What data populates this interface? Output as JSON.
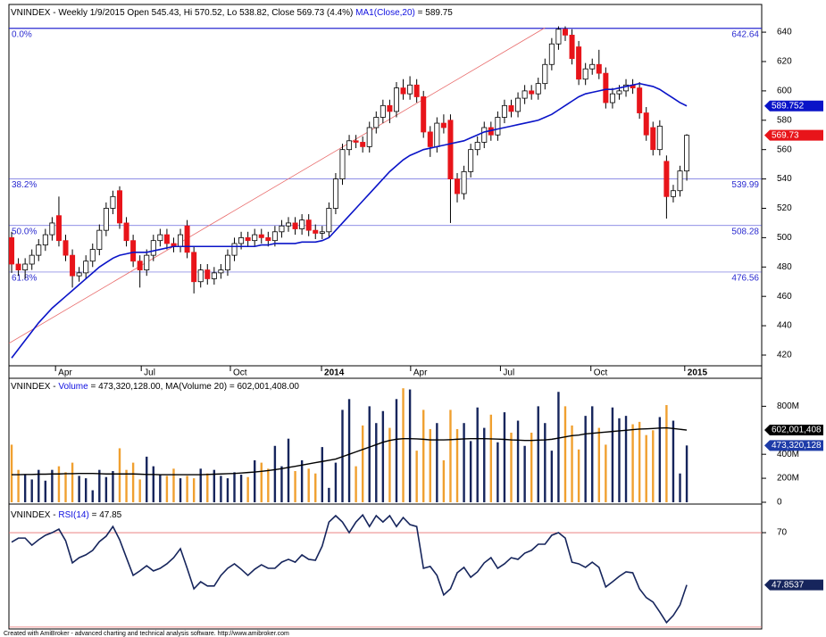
{
  "chart_data": [
    {
      "type": "candlestick",
      "header": [
        "VNINDEX - Weekly 1/9/2015 Open 545.43, Hi 570.52, Lo 538.82, Close 569.73 (4.4%) ",
        "MA1(Close,20)",
        " = 589.75"
      ],
      "xlim": [
        -0.4,
        111.1
      ],
      "xticks": [
        {
          "value": 6.5,
          "label": "Apr"
        },
        {
          "value": 19.2,
          "label": "Jul"
        },
        {
          "value": 32.4,
          "label": "Oct"
        },
        {
          "value": 45.9,
          "label": "2014"
        },
        {
          "value": 59.1,
          "label": "Apr"
        },
        {
          "value": 72.4,
          "label": "Jul"
        },
        {
          "value": 85.8,
          "label": "Oct"
        },
        {
          "value": 99.7,
          "label": "2015"
        }
      ],
      "ylim": [
        412.7,
        644.3
      ],
      "yticks": [
        420,
        440,
        460,
        480,
        500,
        520,
        540,
        560,
        580,
        600,
        620,
        640
      ],
      "up_color": "#ffffff",
      "down_color": "#e8141a",
      "ma_color": "#0a14c8",
      "open": [
        500,
        482,
        478,
        482,
        488,
        495,
        502,
        515,
        498,
        488,
        474,
        476,
        484,
        492,
        505,
        520,
        532,
        510,
        498,
        484,
        478,
        488,
        498,
        502,
        496,
        494,
        508,
        490,
        470,
        478,
        472,
        476,
        478,
        488,
        496,
        500,
        498,
        502,
        500,
        498,
        504,
        508,
        510,
        506,
        512,
        505,
        503,
        504,
        520,
        540,
        560,
        566,
        565,
        562,
        575,
        582,
        590,
        586,
        602,
        598,
        604,
        596,
        572,
        562,
        578,
        580,
        540,
        530,
        545,
        560,
        565,
        575,
        570,
        582,
        590,
        586,
        595,
        600,
        598,
        605,
        618,
        632,
        642,
        638,
        630,
        608,
        615,
        618,
        612,
        592,
        598,
        600,
        604,
        602,
        585,
        575,
        560,
        552,
        528,
        532,
        545.43
      ],
      "high": [
        504,
        486,
        486,
        492,
        499,
        506,
        514,
        528,
        502,
        492,
        480,
        488,
        496,
        509,
        524,
        532,
        535,
        514,
        502,
        488,
        492,
        502,
        506,
        506,
        500,
        506,
        512,
        494,
        482,
        482,
        480,
        482,
        492,
        500,
        504,
        504,
        506,
        506,
        504,
        508,
        512,
        514,
        514,
        516,
        516,
        509,
        508,
        524,
        544,
        564,
        570,
        570,
        569,
        579,
        586,
        594,
        594,
        606,
        608,
        610,
        608,
        600,
        576,
        582,
        584,
        584,
        544,
        549,
        564,
        569,
        579,
        579,
        586,
        594,
        594,
        599,
        604,
        604,
        609,
        622,
        636,
        644,
        644,
        642,
        634,
        619,
        622,
        628,
        616,
        602,
        604,
        608,
        608,
        606,
        589,
        579,
        580,
        556,
        536,
        549,
        570.52
      ],
      "low": [
        476,
        474,
        472,
        478,
        484,
        491,
        498,
        494,
        484,
        466,
        470,
        472,
        480,
        488,
        501,
        516,
        506,
        494,
        480,
        466,
        474,
        484,
        494,
        492,
        490,
        490,
        486,
        462,
        466,
        468,
        468,
        472,
        474,
        484,
        492,
        494,
        494,
        496,
        494,
        494,
        500,
        504,
        502,
        502,
        501,
        499,
        499,
        500,
        516,
        536,
        556,
        561,
        558,
        558,
        571,
        578,
        578,
        582,
        594,
        594,
        592,
        568,
        555,
        558,
        571,
        510,
        524,
        526,
        541,
        556,
        561,
        566,
        566,
        578,
        582,
        582,
        591,
        594,
        594,
        601,
        614,
        628,
        634,
        618,
        604,
        604,
        611,
        608,
        588,
        588,
        594,
        596,
        598,
        581,
        566,
        556,
        556,
        513,
        524,
        528,
        538.82
      ],
      "close": [
        482,
        478,
        482,
        488,
        495,
        502,
        510,
        498,
        488,
        474,
        476,
        484,
        492,
        505,
        520,
        528,
        510,
        498,
        484,
        478,
        488,
        498,
        502,
        496,
        494,
        502,
        490,
        470,
        478,
        472,
        476,
        478,
        488,
        496,
        500,
        498,
        502,
        500,
        498,
        504,
        508,
        510,
        506,
        512,
        505,
        503,
        504,
        520,
        540,
        560,
        566,
        565,
        562,
        575,
        582,
        590,
        586,
        602,
        598,
        604,
        596,
        572,
        562,
        578,
        575,
        540,
        530,
        545,
        560,
        565,
        575,
        570,
        582,
        590,
        586,
        595,
        600,
        598,
        605,
        618,
        632,
        642,
        638,
        622,
        608,
        615,
        618,
        612,
        592,
        598,
        600,
        604,
        602,
        585,
        570,
        560,
        576,
        528,
        532,
        545.43,
        569.73
      ],
      "ma": [
        418,
        424,
        430,
        436,
        442,
        447,
        452,
        456,
        460,
        464,
        468,
        472,
        476,
        480,
        483,
        486,
        488,
        489,
        490,
        490,
        490,
        491,
        492,
        493,
        494,
        494,
        494,
        494,
        494,
        494,
        494,
        494,
        494,
        494,
        494,
        494,
        494,
        495,
        495,
        496,
        496,
        496,
        496,
        497,
        497,
        497,
        498,
        500,
        505,
        510,
        515,
        520,
        525,
        530,
        535,
        540,
        545,
        549,
        553,
        556,
        558,
        560,
        561,
        562,
        563,
        564,
        565,
        566,
        568,
        570,
        572,
        573,
        574,
        575,
        576,
        577,
        578,
        579,
        580,
        582,
        584,
        587,
        590,
        593,
        596,
        598,
        599,
        600,
        601,
        601,
        602,
        603,
        604,
        605,
        604,
        603,
        601,
        598,
        595,
        592,
        589.752
      ],
      "levels": [
        {
          "pct": "0.0%",
          "value": 642.64
        },
        {
          "pct": "38.2%",
          "value": 539.99
        },
        {
          "pct": "50.0%",
          "value": 508.28
        },
        {
          "pct": "61.8%",
          "value": 476.56
        }
      ],
      "level_color": "#2a2ad0",
      "trendline": {
        "x": [
          -0.4,
          79
        ],
        "values": [
          428,
          643
        ],
        "color": "#e86a6a"
      }
    },
    {
      "type": "bar",
      "header": [
        "VNINDEX - ",
        "Volume",
        " = 473,320,128.00, MA(Volume 20) = 602,001,408.00"
      ],
      "ylim": [
        -15000000,
        1011000000
      ],
      "yticks": [
        0,
        {
          "value": 200000000,
          "label": "200M"
        },
        {
          "value": 400000000,
          "label": "400M"
        },
        {
          "value": 800000000,
          "label": "800M"
        }
      ],
      "up_color": "#16255c",
      "down_color": "#f0a030",
      "series": [
        {
          "values": [
            480000000,
            270000000,
            230000000,
            190000000,
            270000000,
            180000000,
            270000000,
            300000000,
            250000000,
            330000000,
            220000000,
            200000000,
            100000000,
            270000000,
            210000000,
            260000000,
            450000000,
            270000000,
            330000000,
            190000000,
            380000000,
            300000000,
            230000000,
            220000000,
            280000000,
            200000000,
            220000000,
            200000000,
            280000000,
            240000000,
            270000000,
            220000000,
            200000000,
            250000000,
            230000000,
            210000000,
            350000000,
            330000000,
            280000000,
            470000000,
            300000000,
            530000000,
            260000000,
            350000000,
            280000000,
            240000000,
            460000000,
            120000000,
            330000000,
            770000000,
            860000000,
            300000000,
            640000000,
            800000000,
            660000000,
            760000000,
            620000000,
            860000000,
            950000000,
            940000000,
            430000000,
            770000000,
            610000000,
            660000000,
            350000000,
            770000000,
            610000000,
            660000000,
            510000000,
            790000000,
            620000000,
            730000000,
            500000000,
            750000000,
            580000000,
            680000000,
            470000000,
            580000000,
            800000000,
            660000000,
            430000000,
            920000000,
            800000000,
            640000000,
            440000000,
            720000000,
            800000000,
            620000000,
            480000000,
            790000000,
            700000000,
            720000000,
            650000000,
            670000000,
            560000000,
            600000000,
            710000000,
            810000000,
            680000000,
            240000000,
            473320128
          ],
          "last_label": "473,320,128",
          "color": "#1e3ca8"
        },
        {
          "values": [
            230000000,
            230000000,
            232000000,
            232000000,
            234000000,
            234000000,
            236000000,
            236000000,
            238000000,
            238000000,
            240000000,
            240000000,
            240000000,
            238000000,
            236000000,
            236000000,
            236000000,
            236000000,
            236000000,
            234000000,
            232000000,
            232000000,
            230000000,
            230000000,
            230000000,
            230000000,
            230000000,
            230000000,
            230000000,
            232000000,
            234000000,
            236000000,
            238000000,
            240000000,
            244000000,
            248000000,
            252000000,
            258000000,
            264000000,
            272000000,
            280000000,
            290000000,
            300000000,
            310000000,
            320000000,
            330000000,
            340000000,
            350000000,
            360000000,
            380000000,
            400000000,
            420000000,
            440000000,
            460000000,
            480000000,
            500000000,
            515000000,
            525000000,
            530000000,
            530000000,
            528000000,
            525000000,
            520000000,
            520000000,
            520000000,
            522000000,
            525000000,
            528000000,
            530000000,
            530000000,
            530000000,
            528000000,
            526000000,
            524000000,
            520000000,
            518000000,
            515000000,
            515000000,
            518000000,
            520000000,
            525000000,
            535000000,
            545000000,
            555000000,
            560000000,
            570000000,
            575000000,
            580000000,
            585000000,
            590000000,
            595000000,
            600000000,
            605000000,
            610000000,
            612000000,
            615000000,
            618000000,
            620000000,
            615000000,
            608000000,
            602001408
          ],
          "last_label": "602,001,408",
          "color": "#000000"
        }
      ]
    },
    {
      "type": "line",
      "header": [
        "VNINDEX - ",
        "RSI(14)",
        " = 47.85"
      ],
      "ylim": [
        29.2,
        80.6
      ],
      "yticks": [
        70
      ],
      "ref_lines": [
        70,
        30
      ],
      "ref_color": "#e87070",
      "color": "#16255c",
      "values": [
        66.0,
        67.7,
        67.7,
        64.7,
        67.0,
        68.9,
        70.0,
        71.5,
        66.6,
        57.2,
        59.4,
        60.6,
        62.5,
        66.2,
        68.5,
        72.6,
        67.0,
        59.4,
        51.9,
        53.8,
        56.0,
        53.8,
        54.9,
        56.8,
        59.4,
        63.2,
        54.9,
        46.2,
        49.2,
        47.4,
        47.4,
        51.9,
        54.9,
        56.8,
        54.5,
        51.9,
        54.5,
        56.4,
        54.9,
        54.9,
        57.5,
        58.7,
        57.5,
        60.6,
        58.7,
        58.3,
        64.3,
        74.5,
        77.2,
        74.5,
        70.0,
        74.5,
        77.5,
        72.6,
        77.2,
        74.5,
        77.2,
        72.6,
        76.4,
        73.4,
        72.6,
        54.9,
        55.7,
        51.9,
        43.6,
        46.2,
        53.0,
        55.3,
        51.1,
        53.4,
        57.2,
        59.4,
        54.9,
        56.8,
        59.4,
        58.7,
        61.3,
        62.5,
        65.1,
        65.1,
        68.9,
        70.0,
        67.7,
        57.5,
        56.8,
        55.3,
        57.5,
        55.3,
        47.0,
        49.2,
        51.5,
        53.4,
        53.0,
        46.2,
        42.5,
        40.6,
        36.4,
        31.9,
        34.9,
        39.4,
        47.8537
      ]
    }
  ],
  "footer": "Created with AmiBroker - advanced charting and technical analysis software. http://www.amibroker.com"
}
